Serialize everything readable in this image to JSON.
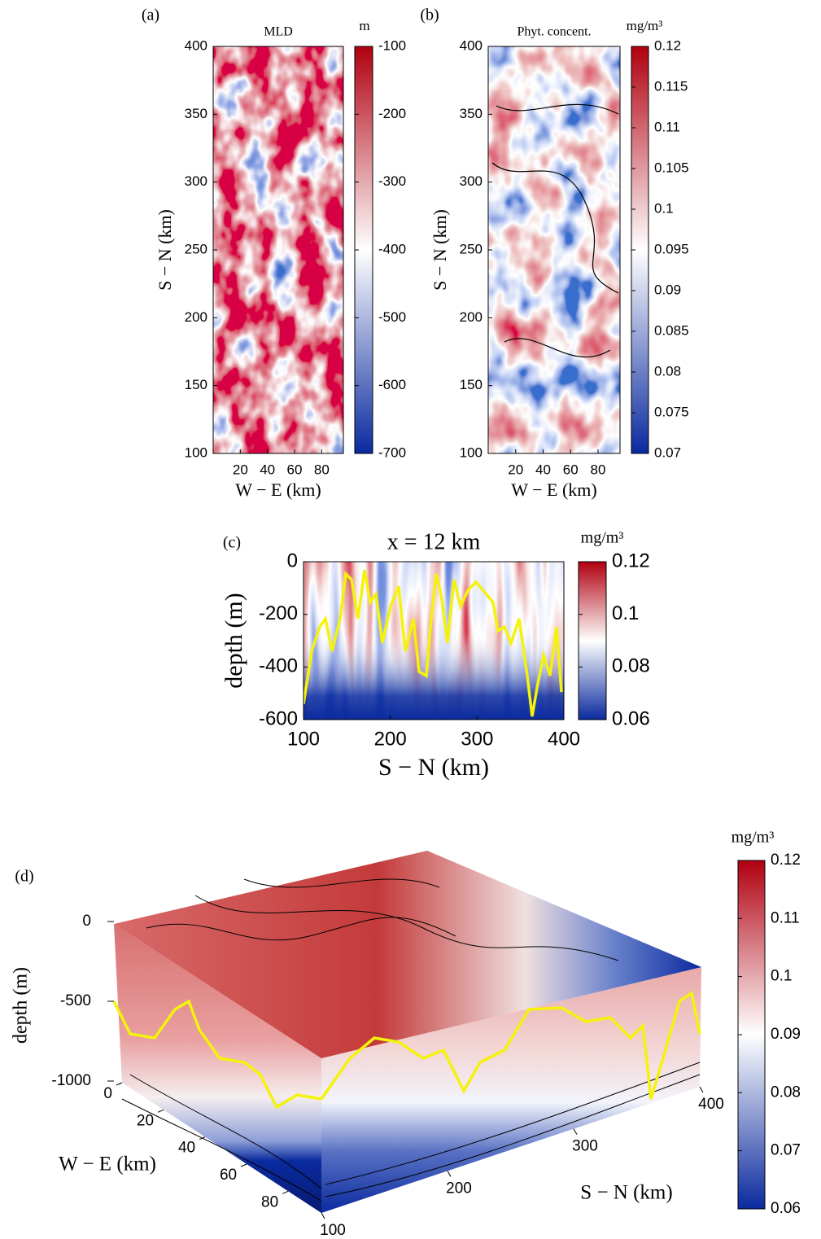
{
  "chart_data": [
    {
      "type": "heatmap",
      "panel": "(a)",
      "title": "MLD",
      "x_label": "W − E (km)",
      "y_label": "S − N (km)",
      "xlim": [
        0,
        96
      ],
      "xticks": [
        20,
        40,
        60,
        80
      ],
      "ylim": [
        100,
        400
      ],
      "yticks": [
        100,
        150,
        200,
        250,
        300,
        350,
        400
      ],
      "colorbar": {
        "label": "m",
        "lim": [
          -700,
          -100
        ],
        "ticks": [
          -700,
          -600,
          -500,
          -400,
          -300,
          -200,
          -100
        ],
        "colormap": [
          "#0a2a9e",
          "#ffffff",
          "#b00010"
        ]
      }
    },
    {
      "type": "heatmap",
      "panel": "(b)",
      "title": "Phyt. concent.",
      "x_label": "W − E (km)",
      "y_label": "S − N (km)",
      "xlim": [
        0,
        96
      ],
      "xticks": [
        20,
        40,
        60,
        80
      ],
      "ylim": [
        100,
        400
      ],
      "yticks": [
        100,
        150,
        200,
        250,
        300,
        350,
        400
      ],
      "colorbar": {
        "label": "mg/m³",
        "lim": [
          0.07,
          0.12
        ],
        "ticks": [
          0.07,
          0.075,
          0.08,
          0.085,
          0.09,
          0.095,
          0.1,
          0.105,
          0.11,
          0.115,
          0.12
        ],
        "colormap": [
          "#0a2a9e",
          "#ffffff",
          "#b00010"
        ]
      }
    },
    {
      "type": "heatmap",
      "panel": "(c)",
      "title": "x = 12 km",
      "x_label": "S − N (km)",
      "y_label": "depth (m)",
      "xlim": [
        100,
        400
      ],
      "xticks": [
        100,
        200,
        300,
        400
      ],
      "ylim": [
        -600,
        0
      ],
      "yticks": [
        -600,
        -400,
        -200,
        0
      ],
      "colorbar": {
        "label": "mg/m³",
        "lim": [
          0.06,
          0.12
        ],
        "ticks": [
          0.06,
          0.08,
          0.1,
          0.12
        ],
        "colormap": [
          "#0a2a9e",
          "#ffffff",
          "#b00010"
        ]
      }
    },
    {
      "type": "heatmap3d",
      "panel": "(d)",
      "z_label": "depth (m)",
      "x_label": "W − E (km)",
      "y_label": "S − N (km)",
      "xlim": [
        0,
        96
      ],
      "xticks": [
        0,
        20,
        40,
        60,
        80
      ],
      "ylim": [
        100,
        400
      ],
      "yticks": [
        100,
        200,
        300,
        400
      ],
      "zlim": [
        -1000,
        0
      ],
      "zticks": [
        -1000,
        -500,
        0
      ],
      "colorbar": {
        "label": "mg/m³",
        "lim": [
          0.06,
          0.12
        ],
        "ticks": [
          0.06,
          0.07,
          0.08,
          0.09,
          0.1,
          0.11,
          0.12
        ],
        "colormap": [
          "#0a2a9e",
          "#ffffff",
          "#b00010"
        ]
      }
    }
  ]
}
